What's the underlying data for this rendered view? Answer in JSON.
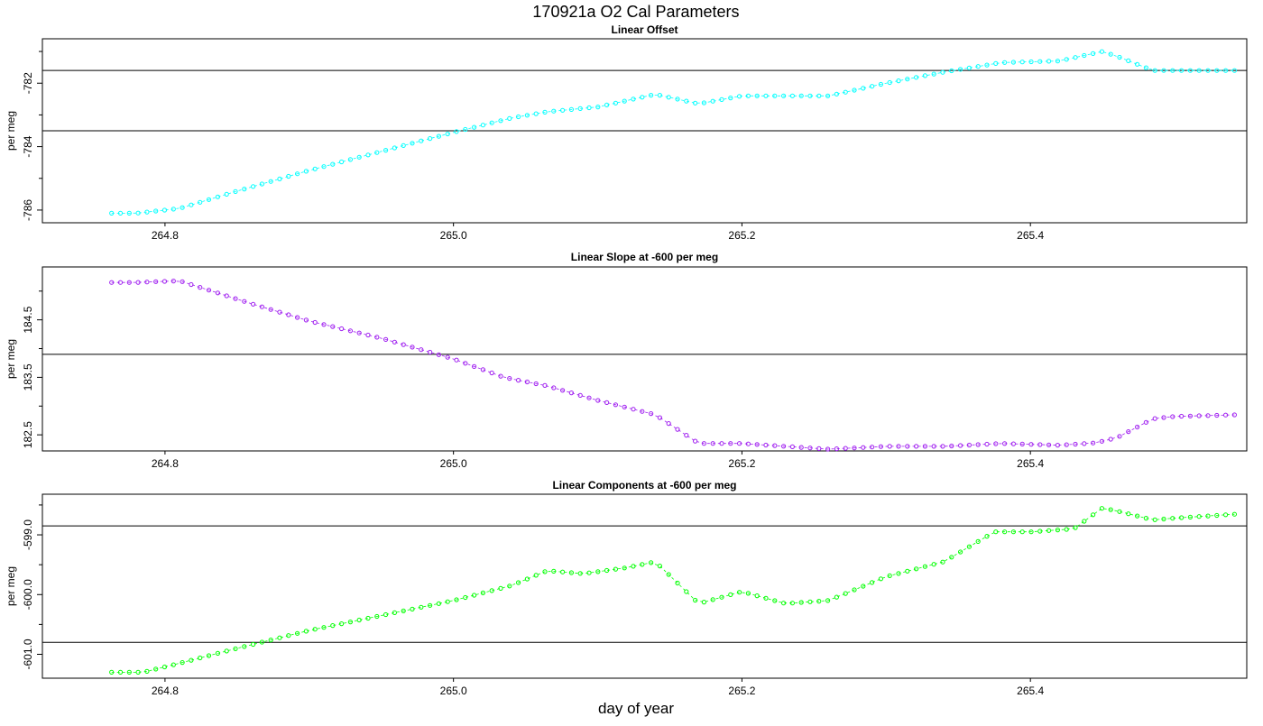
{
  "title": "170921a   O2 Cal Parameters",
  "xlabel": "day of year",
  "colors": {
    "panel1": "#00ffff",
    "panel2": "#a020f0",
    "panel3": "#00ff00",
    "axis": "#000000"
  },
  "chart_data": [
    {
      "type": "scatter",
      "title": "Linear Offset",
      "ylabel": "per meg",
      "xlim": [
        264.715,
        265.55
      ],
      "ylim": [
        -786.4,
        -780.6
      ],
      "xticks": [
        264.8,
        265.0,
        265.2,
        265.4
      ],
      "xtick_labels": [
        "264.8",
        "265.0",
        "265.2",
        "265.4"
      ],
      "yticks": [
        -786,
        -784,
        -782
      ],
      "ytick_labels": [
        "-786",
        "-784",
        "-782"
      ],
      "minor_yticks": [
        -785,
        -783,
        -781
      ],
      "hlines": [
        -783.5,
        -781.6
      ],
      "series": [
        {
          "knots_x": [
            264.763,
            264.78,
            264.81,
            264.85,
            264.9,
            264.95,
            265.0,
            265.04,
            265.065,
            265.1,
            265.14,
            265.17,
            265.2,
            265.23,
            265.26,
            265.3,
            265.34,
            265.38,
            265.42,
            265.45,
            265.46,
            265.485,
            265.5,
            265.545
          ],
          "knots_y": [
            -786.1,
            -786.1,
            -785.95,
            -785.4,
            -784.75,
            -784.15,
            -783.55,
            -783.1,
            -782.9,
            -782.75,
            -782.35,
            -782.65,
            -782.4,
            -782.4,
            -782.4,
            -782.0,
            -781.65,
            -781.35,
            -781.3,
            -781.0,
            -781.15,
            -781.6,
            -781.6,
            -781.6
          ],
          "step": 0.00613
        }
      ]
    },
    {
      "type": "scatter",
      "title": "Linear Slope at -600 per meg",
      "ylabel": "per meg",
      "xlim": [
        264.715,
        265.55
      ],
      "ylim": [
        182.22,
        185.42
      ],
      "xticks": [
        264.8,
        265.0,
        265.2,
        265.4
      ],
      "xtick_labels": [
        "264.8",
        "265.0",
        "265.2",
        "265.4"
      ],
      "yticks": [
        182.5,
        183.5,
        184.5
      ],
      "ytick_labels": [
        "182.5",
        "183.5",
        "184.5"
      ],
      "minor_yticks": [
        183.0,
        184.0,
        185.0
      ],
      "hlines": [
        183.9
      ],
      "series": [
        {
          "knots_x": [
            264.763,
            264.78,
            264.81,
            264.83,
            264.86,
            264.9,
            264.95,
            265.0,
            265.035,
            265.065,
            265.1,
            265.14,
            265.17,
            265.2,
            265.23,
            265.26,
            265.3,
            265.34,
            265.38,
            265.42,
            265.445,
            265.46,
            265.485,
            265.5,
            265.545
          ],
          "knots_y": [
            185.15,
            185.15,
            185.18,
            185.02,
            184.78,
            184.48,
            184.18,
            183.82,
            183.5,
            183.35,
            183.1,
            182.85,
            182.35,
            182.35,
            182.3,
            182.25,
            182.3,
            182.3,
            182.35,
            182.32,
            182.36,
            182.45,
            182.78,
            182.82,
            182.85
          ],
          "step": 0.00613
        }
      ]
    },
    {
      "type": "scatter",
      "title": "Linear Components at -600 per meg",
      "ylabel": "per meg",
      "xlim": [
        264.715,
        265.55
      ],
      "ylim": [
        -601.4,
        -598.32
      ],
      "xticks": [
        264.8,
        265.0,
        265.2,
        265.4
      ],
      "xtick_labels": [
        "264.8",
        "265.0",
        "265.2",
        "265.4"
      ],
      "yticks": [
        -601.0,
        -600.0,
        -599.0
      ],
      "ytick_labels": [
        "-601.0",
        "-600.0",
        "-599.0"
      ],
      "minor_yticks": [
        -600.5,
        -599.5,
        -598.5
      ],
      "hlines": [
        -600.8,
        -598.85
      ],
      "series": [
        {
          "knots_x": [
            264.763,
            264.785,
            264.81,
            264.85,
            264.9,
            264.95,
            265.0,
            265.04,
            265.065,
            265.09,
            265.12,
            265.14,
            265.17,
            265.2,
            265.23,
            265.26,
            265.3,
            265.34,
            265.375,
            265.4,
            265.43,
            265.45,
            265.46,
            265.485,
            265.5,
            265.545
          ],
          "knots_y": [
            -601.3,
            -601.3,
            -601.15,
            -600.9,
            -600.6,
            -600.35,
            -600.1,
            -599.85,
            -599.6,
            -599.65,
            -599.55,
            -599.45,
            -600.15,
            -599.95,
            -600.15,
            -600.1,
            -599.7,
            -599.45,
            -598.95,
            -598.95,
            -598.9,
            -598.55,
            -598.6,
            -598.75,
            -598.72,
            -598.65
          ],
          "step": 0.00613
        }
      ]
    }
  ]
}
